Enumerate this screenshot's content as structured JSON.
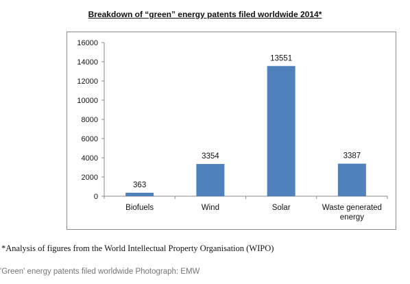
{
  "chart_data": {
    "type": "bar",
    "title": "Breakdown of “green” energy patents filed worldwide 2014*",
    "categories": [
      "Biofuels",
      "Wind",
      "Solar",
      "Waste generated energy"
    ],
    "category_lines": [
      [
        "Biofuels"
      ],
      [
        "Wind"
      ],
      [
        "Solar"
      ],
      [
        "Waste generated",
        "energy"
      ]
    ],
    "values": [
      363,
      3354,
      13551,
      3387
    ],
    "data_labels": [
      "363",
      "3354",
      "13551",
      "3387"
    ],
    "ylim": [
      0,
      16000
    ],
    "yticks": [
      0,
      2000,
      4000,
      6000,
      8000,
      10000,
      12000,
      14000,
      16000
    ],
    "xlabel": "",
    "ylabel": "",
    "bar_color": "#4f81bd",
    "grid": false,
    "legend": "none"
  },
  "footnote": "*Analysis of figures from the World Intellectual Property Organisation (WIPO)",
  "caption": "'Green' energy patents filed worldwide Photograph: EMW"
}
